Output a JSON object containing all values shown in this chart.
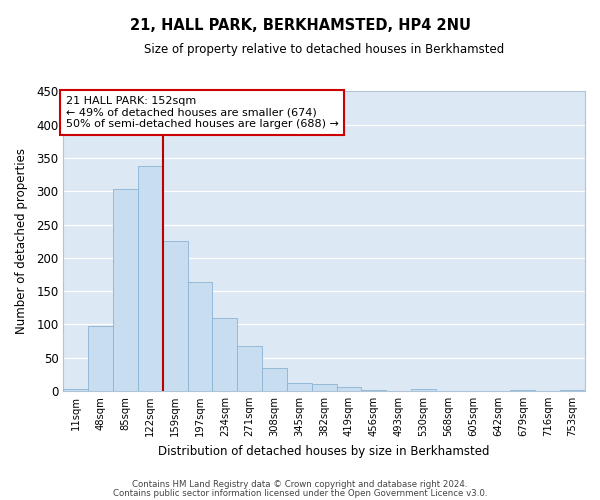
{
  "title": "21, HALL PARK, BERKHAMSTED, HP4 2NU",
  "subtitle": "Size of property relative to detached houses in Berkhamsted",
  "xlabel": "Distribution of detached houses by size in Berkhamsted",
  "ylabel": "Number of detached properties",
  "bar_labels": [
    "11sqm",
    "48sqm",
    "85sqm",
    "122sqm",
    "159sqm",
    "197sqm",
    "234sqm",
    "271sqm",
    "308sqm",
    "345sqm",
    "382sqm",
    "419sqm",
    "456sqm",
    "493sqm",
    "530sqm",
    "568sqm",
    "605sqm",
    "642sqm",
    "679sqm",
    "716sqm",
    "753sqm"
  ],
  "bar_heights": [
    3,
    97,
    304,
    338,
    225,
    164,
    109,
    68,
    35,
    12,
    11,
    6,
    1,
    0,
    3,
    0,
    0,
    0,
    1,
    0,
    2
  ],
  "bar_color": "#c9ddf0",
  "bar_edge_color": "#8ab4d4",
  "ylim": [
    0,
    450
  ],
  "yticks": [
    0,
    50,
    100,
    150,
    200,
    250,
    300,
    350,
    400,
    450
  ],
  "vline_x_index": 3.5,
  "vline_color": "#bb0000",
  "annotation_title": "21 HALL PARK: 152sqm",
  "annotation_line1": "← 49% of detached houses are smaller (674)",
  "annotation_line2": "50% of semi-detached houses are larger (688) →",
  "annotation_box_facecolor": "#ffffff",
  "annotation_box_edgecolor": "#cc0000",
  "footer_line1": "Contains HM Land Registry data © Crown copyright and database right 2024.",
  "footer_line2": "Contains public sector information licensed under the Open Government Licence v3.0.",
  "fig_facecolor": "#ffffff",
  "ax_facecolor": "#dce8f4"
}
